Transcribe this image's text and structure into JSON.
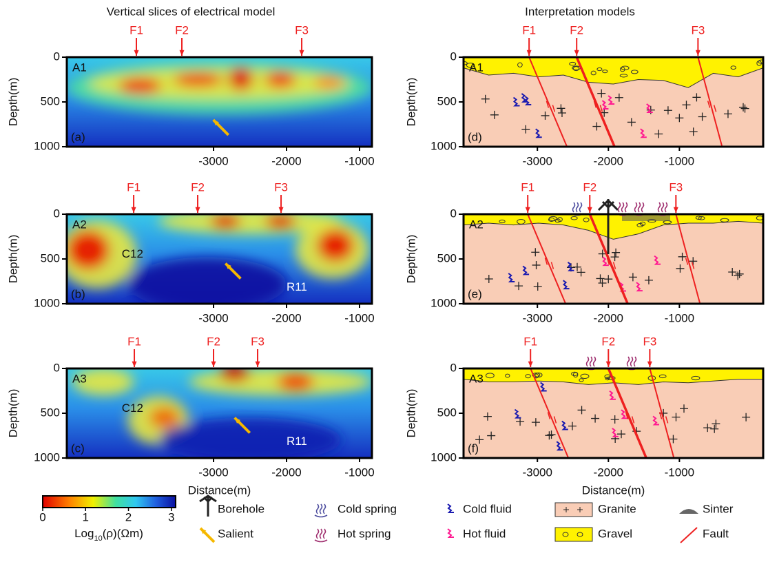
{
  "column_titles": [
    "Vertical slices of electrical model",
    "Interpretation models"
  ],
  "axis_labels": {
    "y": "Depth(m)",
    "x": "Distance(m)"
  },
  "panels": [
    {
      "kind": "model",
      "label": "(a)",
      "profile": "A1",
      "xlim": [
        -5010,
        -830
      ],
      "ylim": [
        0,
        1000
      ],
      "xticks": [
        -3000,
        -2000,
        -1000
      ],
      "yticks": [
        0,
        500,
        1000
      ],
      "faults": [
        {
          "name": "F1",
          "x": -4057
        },
        {
          "name": "F2",
          "x": -3434
        },
        {
          "name": "F3",
          "x": -1792
        }
      ],
      "annotations": []
    },
    {
      "kind": "model",
      "label": "(b)",
      "profile": "A2",
      "xlim": [
        -5010,
        -830
      ],
      "ylim": [
        0,
        1000
      ],
      "xticks": [
        -3000,
        -2000,
        -1000
      ],
      "yticks": [
        0,
        500,
        1000
      ],
      "faults": [
        {
          "name": "F1",
          "x": -4094
        },
        {
          "name": "F2",
          "x": -3217
        },
        {
          "name": "F3",
          "x": -2075
        }
      ],
      "annotations": [
        "C12",
        "R11"
      ]
    },
    {
      "kind": "model",
      "label": "(c)",
      "profile": "A3",
      "xlim": [
        -5010,
        -830
      ],
      "ylim": [
        0,
        1000
      ],
      "xticks": [
        -3000,
        -2000,
        -1000
      ],
      "yticks": [
        0,
        500,
        1000
      ],
      "faults": [
        {
          "name": "F1",
          "x": -4085
        },
        {
          "name": "F2",
          "x": -3000
        },
        {
          "name": "F3",
          "x": -2396
        }
      ],
      "annotations": [
        "C12",
        "R11"
      ]
    },
    {
      "kind": "interpretation",
      "label": "(d)",
      "profile": "A1",
      "xlim": [
        -4040,
        180
      ],
      "ylim": [
        0,
        1000
      ],
      "xticks": [
        -3000,
        -2000,
        -1000
      ],
      "yticks": [
        0,
        500,
        1000
      ],
      "faults": [
        {
          "name": "F1",
          "x": -3117
        },
        {
          "name": "F2",
          "x": -2447
        },
        {
          "name": "F3",
          "x": -738
        }
      ],
      "annotations": []
    },
    {
      "kind": "interpretation",
      "label": "(e)",
      "profile": "A2",
      "xlim": [
        -4040,
        180
      ],
      "ylim": [
        0,
        1000
      ],
      "xticks": [
        -3000,
        -2000,
        -1000
      ],
      "yticks": [
        0,
        500,
        1000
      ],
      "faults": [
        {
          "name": "F1",
          "x": -3136
        },
        {
          "name": "F2",
          "x": -2262
        },
        {
          "name": "F3",
          "x": -1049
        }
      ],
      "annotations": []
    },
    {
      "kind": "interpretation",
      "label": "(f)",
      "profile": "A3",
      "xlim": [
        -4040,
        180
      ],
      "ylim": [
        0,
        1000
      ],
      "xticks": [
        -3000,
        -2000,
        -1000
      ],
      "yticks": [
        0,
        500,
        1000
      ],
      "faults": [
        {
          "name": "F1",
          "x": -3097
        },
        {
          "name": "F2",
          "x": -2000
        },
        {
          "name": "F3",
          "x": -1417
        }
      ],
      "annotations": []
    }
  ],
  "colorbar": {
    "lim": [
      0,
      3.1
    ],
    "ticks": [
      0,
      1,
      2,
      3
    ],
    "label": {
      "base": "Log",
      "sub": "10",
      "rest": "(ρ)(Ωm)"
    }
  },
  "legend": [
    "Borehole",
    "Salient",
    "Cold spring",
    "Hot spring",
    "Cold fluid",
    "Hot fluid",
    "Granite",
    "Gravel",
    "Sinter",
    "Fault"
  ]
}
